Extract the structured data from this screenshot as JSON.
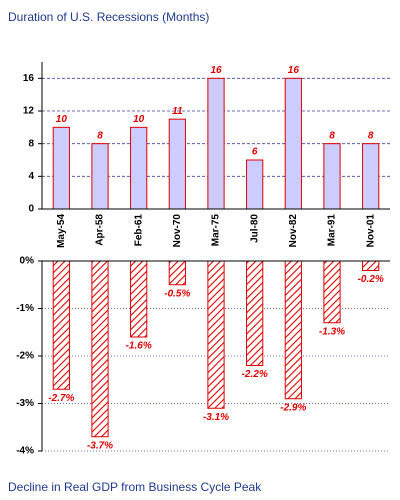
{
  "chart_data": [
    {
      "type": "bar",
      "title": "Duration of U.S. Recessions (Months)",
      "categories": [
        "May-54",
        "Apr-58",
        "Feb-61",
        "Nov-70",
        "Mar-75",
        "Jul-80",
        "Nov-82",
        "Mar-91",
        "Nov-01"
      ],
      "values": [
        10,
        8,
        10,
        11,
        16,
        6,
        16,
        8,
        8
      ],
      "color": "#ccccff",
      "ylim": [
        0,
        18
      ],
      "yticks": [
        0,
        4,
        8,
        12,
        16
      ],
      "grid": true
    },
    {
      "type": "bar",
      "title": "Decline in Real GDP from Business Cycle Peak",
      "values": [
        -2.7,
        -3.7,
        -1.6,
        -0.5,
        -3.1,
        -2.2,
        -2.9,
        -1.3,
        -0.2
      ],
      "value_labels": [
        "-2.7%",
        "-3.7%",
        "-1.6%",
        "-0.5%",
        "-3.1%",
        "-2.2%",
        "-2.9%",
        "-1.3%",
        "-0.2%"
      ],
      "color": "#e00000",
      "ylim": [
        -4,
        0
      ],
      "yticks": [
        {
          "value": 0,
          "label": "0%"
        },
        {
          "value": -1,
          "label": "-1%"
        },
        {
          "value": -2,
          "label": "-2%"
        },
        {
          "value": -3,
          "label": "-3%"
        },
        {
          "value": -4,
          "label": "-4%"
        }
      ],
      "grid": true
    }
  ]
}
